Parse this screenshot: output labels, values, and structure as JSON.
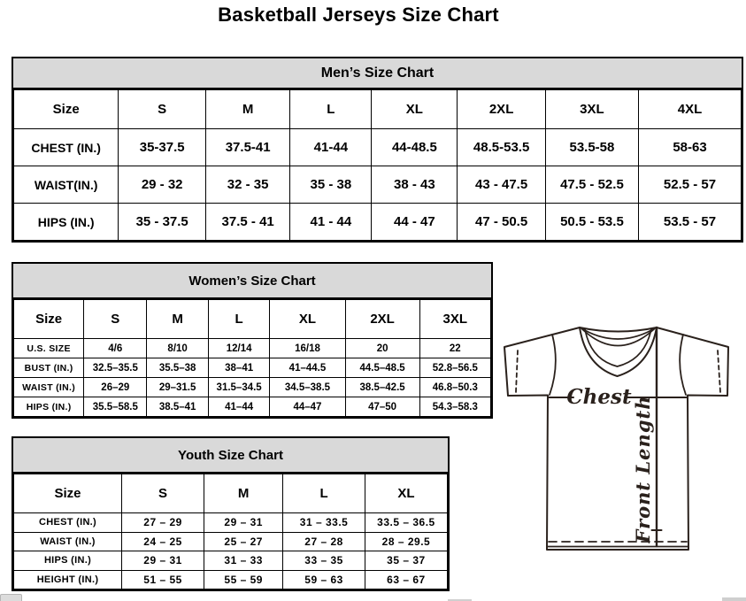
{
  "page": {
    "title": "Basketball Jerseys Size Chart"
  },
  "tables": {
    "men": {
      "title": "Men’s Size Chart",
      "corner_label": "Size",
      "columns": [
        "S",
        "M",
        "L",
        "XL",
        "2XL",
        "3XL",
        "4XL"
      ],
      "rows": [
        {
          "label": "CHEST (IN.)",
          "values": [
            "35-37.5",
            "37.5-41",
            "41-44",
            "44-48.5",
            "48.5-53.5",
            "53.5-58",
            "58-63"
          ]
        },
        {
          "label": "WAIST(IN.)",
          "values": [
            "29 - 32",
            "32 - 35",
            "35 - 38",
            "38 - 43",
            "43 - 47.5",
            "47.5 - 52.5",
            "52.5 - 57"
          ]
        },
        {
          "label": "HIPS (IN.)",
          "values": [
            "35 - 37.5",
            "37.5 - 41",
            "41 - 44",
            "44 - 47",
            "47 - 50.5",
            "50.5 - 53.5",
            "53.5 - 57"
          ]
        }
      ]
    },
    "women": {
      "title": "Women’s Size Chart",
      "corner_label": "Size",
      "columns": [
        "S",
        "M",
        "L",
        "XL",
        "2XL",
        "3XL"
      ],
      "rows": [
        {
          "label": "U.S. SIZE",
          "values": [
            "4/6",
            "8/10",
            "12/14",
            "16/18",
            "20",
            "22"
          ]
        },
        {
          "label": "BUST (IN.)",
          "values": [
            "32.5–35.5",
            "35.5–38",
            "38–41",
            "41–44.5",
            "44.5–48.5",
            "52.8–56.5"
          ]
        },
        {
          "label": "WAIST (IN.)",
          "values": [
            "26–29",
            "29–31.5",
            "31.5–34.5",
            "34.5–38.5",
            "38.5–42.5",
            "46.8–50.3"
          ]
        },
        {
          "label": "HIPS (IN.)",
          "values": [
            "35.5–58.5",
            "38.5–41",
            "41–44",
            "44–47",
            "47–50",
            "54.3–58.3"
          ]
        }
      ]
    },
    "youth": {
      "title": "Youth Size Chart",
      "corner_label": "Size",
      "columns": [
        "S",
        "M",
        "L",
        "XL"
      ],
      "rows": [
        {
          "label": "CHEST (IN.)",
          "values": [
            "27 – 29",
            "29 – 31",
            "31 – 33.5",
            "33.5 – 36.5"
          ]
        },
        {
          "label": "WAIST (IN.)",
          "values": [
            "24 – 25",
            "25 – 27",
            "27 – 28",
            "28 – 29.5"
          ]
        },
        {
          "label": "HIPS (IN.)",
          "values": [
            "29 – 31",
            "31 – 33",
            "33 – 35",
            "35 – 37"
          ]
        },
        {
          "label": "HEIGHT (IN.)",
          "values": [
            "51 – 55",
            "55 – 59",
            "59 – 63",
            "63 – 67"
          ]
        }
      ]
    }
  },
  "diagram": {
    "chest_label": "Chest",
    "front_length_label": "Front Length"
  },
  "colors": {
    "table_header_bg": "#d9d9d9",
    "table_border": "#000000",
    "jersey_stroke": "#2a211c",
    "text": "#000000"
  }
}
